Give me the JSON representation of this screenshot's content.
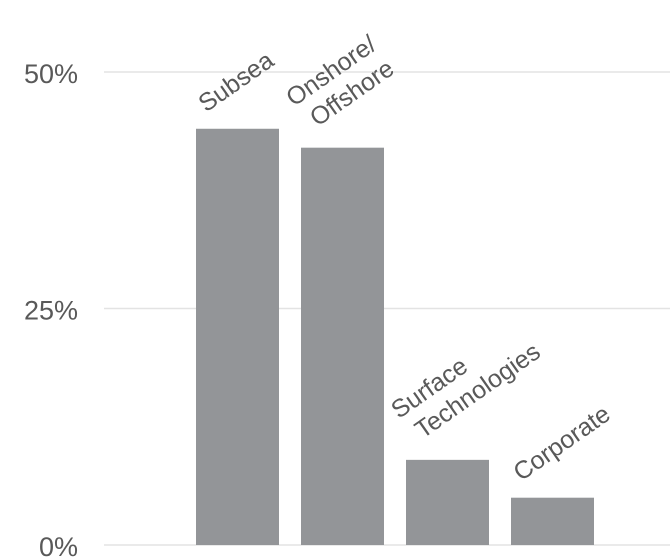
{
  "chart_data": {
    "type": "bar",
    "categories": [
      [
        "Subsea"
      ],
      [
        "Onshore/",
        "Offshore"
      ],
      [
        "Surface",
        "Technologies"
      ],
      [
        "Corporate"
      ]
    ],
    "values": [
      44,
      42,
      9,
      5
    ],
    "unit": "%",
    "ylim": [
      0,
      50
    ],
    "yticks": [
      "0%",
      "25%",
      "50%"
    ],
    "ytick_values": [
      0,
      25,
      50
    ],
    "grid": true,
    "bar_color": "#939598",
    "gridline_color": "#e3e3e3",
    "text_color": "#595959",
    "title": "",
    "xlabel": "",
    "ylabel": ""
  }
}
